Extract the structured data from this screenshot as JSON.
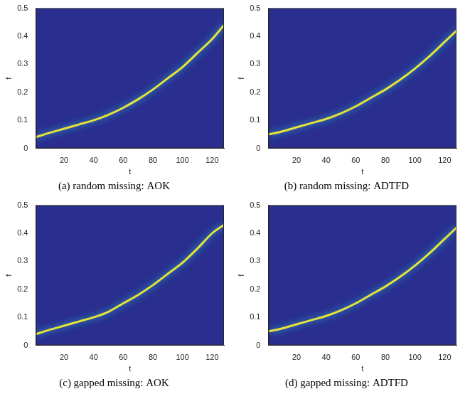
{
  "chart_data": [
    {
      "type": "line",
      "title": "(a) random missing: AOK",
      "x_label": "t",
      "y_label": "f",
      "x": [
        1,
        10,
        20,
        30,
        40,
        50,
        60,
        70,
        80,
        90,
        100,
        110,
        120,
        128
      ],
      "values": [
        0.04,
        0.055,
        0.07,
        0.085,
        0.1,
        0.12,
        0.145,
        0.175,
        0.21,
        0.25,
        0.29,
        0.34,
        0.39,
        0.44
      ],
      "color": "#e6e23a",
      "xlim": [
        1,
        128
      ],
      "ylim": [
        0,
        0.5
      ],
      "xticks": [
        20,
        40,
        60,
        80,
        100,
        120
      ],
      "yticks": [
        0,
        0.1,
        0.2,
        0.3,
        0.4,
        0.5
      ],
      "grid": false
    },
    {
      "type": "line",
      "title": "(b) random missing: ADTFD",
      "x_label": "t",
      "y_label": "f",
      "x": [
        1,
        10,
        20,
        30,
        40,
        50,
        60,
        70,
        80,
        90,
        100,
        110,
        120,
        128
      ],
      "values": [
        0.05,
        0.06,
        0.075,
        0.09,
        0.105,
        0.125,
        0.15,
        0.18,
        0.21,
        0.245,
        0.285,
        0.33,
        0.38,
        0.42
      ],
      "color": "#e6e23a",
      "xlim": [
        1,
        128
      ],
      "ylim": [
        0,
        0.5
      ],
      "xticks": [
        20,
        40,
        60,
        80,
        100,
        120
      ],
      "yticks": [
        0,
        0.1,
        0.2,
        0.3,
        0.4,
        0.5
      ],
      "grid": false
    },
    {
      "type": "line",
      "title": "(c) gapped missing: AOK",
      "x_label": "t",
      "y_label": "f",
      "x": [
        1,
        10,
        20,
        30,
        40,
        50,
        60,
        70,
        80,
        90,
        100,
        110,
        120,
        128
      ],
      "values": [
        0.04,
        0.055,
        0.07,
        0.085,
        0.1,
        0.12,
        0.15,
        0.18,
        0.215,
        0.255,
        0.295,
        0.345,
        0.4,
        0.43
      ],
      "color": "#e6e23a",
      "xlim": [
        1,
        128
      ],
      "ylim": [
        0,
        0.5
      ],
      "xticks": [
        20,
        40,
        60,
        80,
        100,
        120
      ],
      "yticks": [
        0,
        0.1,
        0.2,
        0.3,
        0.4,
        0.5
      ],
      "grid": false
    },
    {
      "type": "line",
      "title": "(d) gapped missing: ADTFD",
      "x_label": "t",
      "y_label": "f",
      "x": [
        1,
        10,
        20,
        30,
        40,
        50,
        60,
        70,
        80,
        90,
        100,
        110,
        120,
        128
      ],
      "values": [
        0.05,
        0.06,
        0.075,
        0.09,
        0.105,
        0.125,
        0.15,
        0.18,
        0.21,
        0.245,
        0.285,
        0.33,
        0.38,
        0.42
      ],
      "color": "#e6e23a",
      "xlim": [
        1,
        128
      ],
      "ylim": [
        0,
        0.5
      ],
      "xticks": [
        20,
        40,
        60,
        80,
        100,
        120
      ],
      "yticks": [
        0,
        0.1,
        0.2,
        0.3,
        0.4,
        0.5
      ],
      "grid": false
    }
  ]
}
